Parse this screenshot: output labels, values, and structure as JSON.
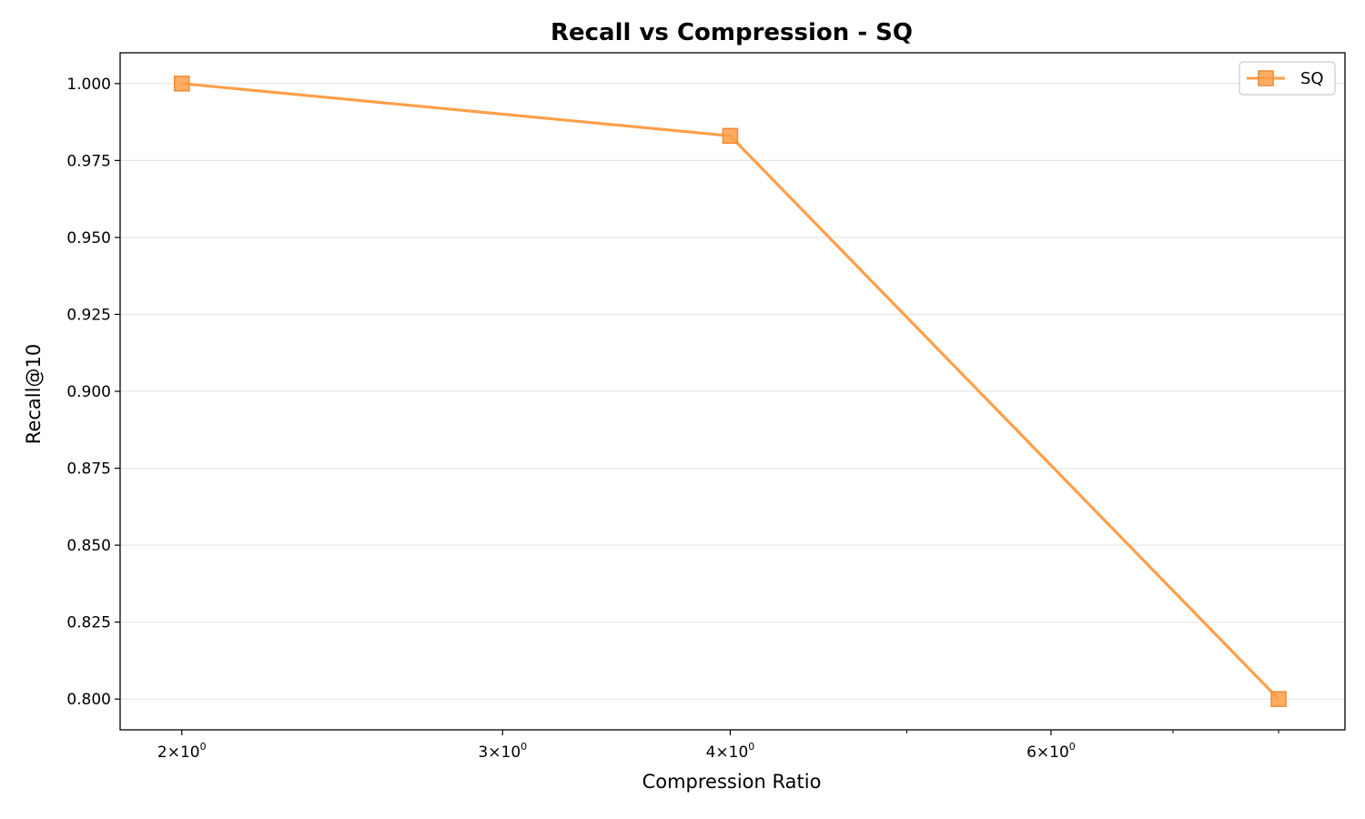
{
  "chart_data": {
    "type": "line",
    "title": "Recall vs Compression - SQ",
    "xlabel": "Compression Ratio",
    "ylabel": "Recall@10",
    "xscale": "log",
    "xlim": [
      1.85,
      8.7
    ],
    "ylim": [
      0.79,
      1.01
    ],
    "grid": "y-major",
    "legend_position": "upper-right",
    "x_ticks": [
      {
        "value": 2,
        "label": "2×10",
        "exp": "0"
      },
      {
        "value": 3,
        "label": "3×10",
        "exp": "0"
      },
      {
        "value": 4,
        "label": "4×10",
        "exp": "0"
      },
      {
        "value": 6,
        "label": "6×10",
        "exp": "0"
      }
    ],
    "x_minor_ticks": [
      5,
      7,
      8
    ],
    "y_ticks": [
      0.8,
      0.825,
      0.85,
      0.875,
      0.9,
      0.925,
      0.95,
      0.975,
      1.0
    ],
    "y_tick_labels": [
      "0.800",
      "0.825",
      "0.850",
      "0.875",
      "0.900",
      "0.925",
      "0.950",
      "0.975",
      "1.000"
    ],
    "series": [
      {
        "name": "SQ",
        "color": "#ff9f4a",
        "marker": "square",
        "x": [
          2,
          4,
          8
        ],
        "y": [
          1.0,
          0.983,
          0.8
        ]
      }
    ]
  }
}
